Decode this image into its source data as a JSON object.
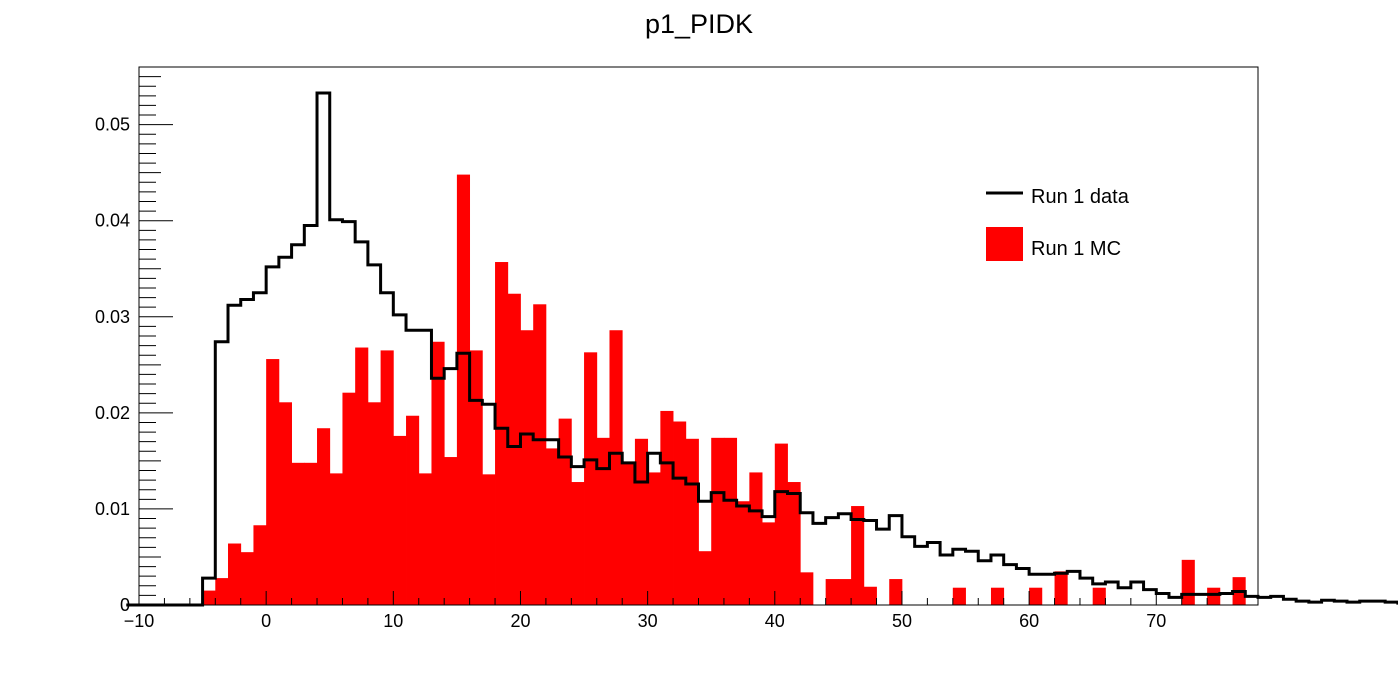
{
  "chart_data": {
    "type": "bar",
    "title": "p1_PIDK",
    "xlabel": "",
    "ylabel": "",
    "xlim": [
      -10,
      78
    ],
    "ylim": [
      0,
      0.056
    ],
    "bin_width": 1,
    "x_ticks": [
      -10,
      0,
      10,
      20,
      30,
      40,
      50,
      60,
      70
    ],
    "x_tick_labels": [
      "−10",
      "0",
      "10",
      "20",
      "30",
      "40",
      "50",
      "60",
      "70"
    ],
    "y_ticks": [
      0,
      0.01,
      0.02,
      0.03,
      0.04,
      0.05
    ],
    "y_tick_labels": [
      "0",
      "0.01",
      "0.02",
      "0.03",
      "0.04",
      "0.05"
    ],
    "legend_position": "top-right",
    "series": [
      {
        "name": "Run 1 MC",
        "style": "filled",
        "color": "#ff0000",
        "bins_from": -5,
        "values": [
          0.0015,
          0.0028,
          0.0064,
          0.0055,
          0.0083,
          0.0256,
          0.0211,
          0.0148,
          0.0148,
          0.0184,
          0.0137,
          0.0221,
          0.0268,
          0.0211,
          0.0265,
          0.0176,
          0.0197,
          0.0137,
          0.0274,
          0.0154,
          0.0448,
          0.0265,
          0.0136,
          0.0357,
          0.0324,
          0.0286,
          0.0313,
          0.0163,
          0.0194,
          0.0128,
          0.0263,
          0.0174,
          0.0286,
          0.0149,
          0.0173,
          0.0138,
          0.0202,
          0.0191,
          0.0173,
          0.0056,
          0.0174,
          0.0174,
          0.0108,
          0.0138,
          0.0086,
          0.0168,
          0.0128,
          0.0034,
          0,
          0.0027,
          0.0027,
          0.0103,
          0.0019,
          0,
          0.0027,
          0,
          0,
          0,
          0,
          0.0018,
          0,
          0,
          0.0018,
          0,
          0,
          0.0018,
          0,
          0.0035,
          0,
          0,
          0.0018,
          0,
          0,
          0,
          0,
          0,
          0,
          0.0047,
          0,
          0.0018,
          0,
          0.0029,
          0,
          0,
          0,
          0.0009,
          0,
          0,
          0.0018,
          0,
          0,
          0,
          0,
          0,
          0,
          0,
          0,
          0,
          0,
          0,
          0,
          0,
          0,
          0,
          0,
          0,
          0,
          0,
          0,
          0,
          0,
          0,
          0,
          0,
          0
        ]
      },
      {
        "name": "Run 1 data",
        "style": "step",
        "color": "#000000",
        "bins_from": -11,
        "values": [
          0,
          0,
          0,
          0,
          0,
          0,
          0.0028,
          0.0274,
          0.0312,
          0.0318,
          0.0325,
          0.0352,
          0.0362,
          0.0375,
          0.0395,
          0.0533,
          0.0401,
          0.0399,
          0.0378,
          0.0354,
          0.0325,
          0.0302,
          0.0286,
          0.0286,
          0.0236,
          0.0246,
          0.0262,
          0.0213,
          0.0209,
          0.0184,
          0.0165,
          0.0178,
          0.0172,
          0.0172,
          0.0154,
          0.0144,
          0.0151,
          0.0142,
          0.0158,
          0.0148,
          0.0128,
          0.0158,
          0.0148,
          0.0132,
          0.0126,
          0.0108,
          0.0117,
          0.0109,
          0.0103,
          0.0098,
          0.0092,
          0.0118,
          0.0116,
          0.0096,
          0.0085,
          0.0091,
          0.0095,
          0.0089,
          0.0088,
          0.0079,
          0.0093,
          0.0071,
          0.0061,
          0.0065,
          0.0052,
          0.0058,
          0.0056,
          0.0046,
          0.0052,
          0.0042,
          0.0038,
          0.0032,
          0.0032,
          0.0033,
          0.0035,
          0.0028,
          0.0022,
          0.0024,
          0.0018,
          0.0024,
          0.0016,
          0.0012,
          0.0008,
          0.0011,
          0.0011,
          0.0011,
          0.0012,
          0.0014,
          0.0009,
          0.0008,
          0.0009,
          0.0006,
          0.0004,
          0.0003,
          0.0005,
          0.0004,
          0.0003,
          0.0004,
          0.0004,
          0.0003,
          0.0002,
          0.0004,
          0.0005,
          0.0003,
          0.0003,
          0.0002,
          0.0001,
          0.0001,
          0.0001,
          0.0001,
          0.0001,
          0.0001,
          0.0001,
          0.0001,
          0.0001,
          0.0001,
          0
        ]
      }
    ]
  }
}
